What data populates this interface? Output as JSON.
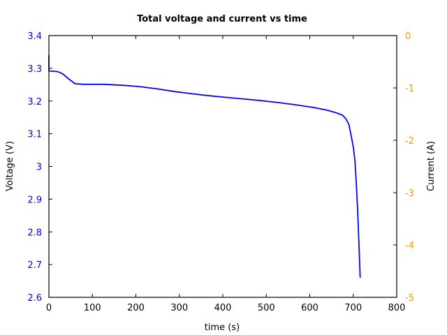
{
  "chart_data": {
    "type": "line",
    "title": "Total voltage and current vs time",
    "xlabel": "time (s)",
    "ylabel": "Voltage (V)",
    "y2label": "Current (A)",
    "xlim": [
      0,
      800
    ],
    "ylim": [
      2.6,
      3.4
    ],
    "y2lim": [
      -5,
      0
    ],
    "grid": false,
    "legend": null,
    "x_ticks": [
      "0",
      "100",
      "200",
      "300",
      "400",
      "500",
      "600",
      "700",
      "800"
    ],
    "y_ticks": [
      "3.4",
      "3.3",
      "3.2",
      "3.1",
      "3",
      "2.9",
      "2.8",
      "2.7",
      "2.6"
    ],
    "y2_ticks": [
      "0",
      "-1",
      "-2",
      "-3",
      "-4",
      "-5"
    ],
    "colors": {
      "voltage": "#0000ff",
      "left_axis_text": "#0000ff",
      "right_axis_text": "#e8a000",
      "frame": "#000000"
    },
    "series": [
      {
        "name": "Voltage",
        "axis": "left",
        "x": [
          0,
          0,
          1,
          20,
          32,
          45,
          60,
          80,
          128,
          170,
          209,
          250,
          289,
          330,
          369,
          410,
          450,
          490,
          530,
          570,
          610,
          640,
          659,
          675,
          683,
          690,
          694,
          700,
          704,
          707,
          710,
          713,
          716
        ],
        "values": [
          3.34,
          3.293,
          3.292,
          3.29,
          3.283,
          3.268,
          3.253,
          3.251,
          3.251,
          3.248,
          3.244,
          3.237,
          3.229,
          3.222,
          3.216,
          3.211,
          3.206,
          3.201,
          3.195,
          3.188,
          3.18,
          3.172,
          3.165,
          3.157,
          3.146,
          3.128,
          3.103,
          3.06,
          3.018,
          2.95,
          2.869,
          2.77,
          2.66
        ]
      }
    ]
  }
}
